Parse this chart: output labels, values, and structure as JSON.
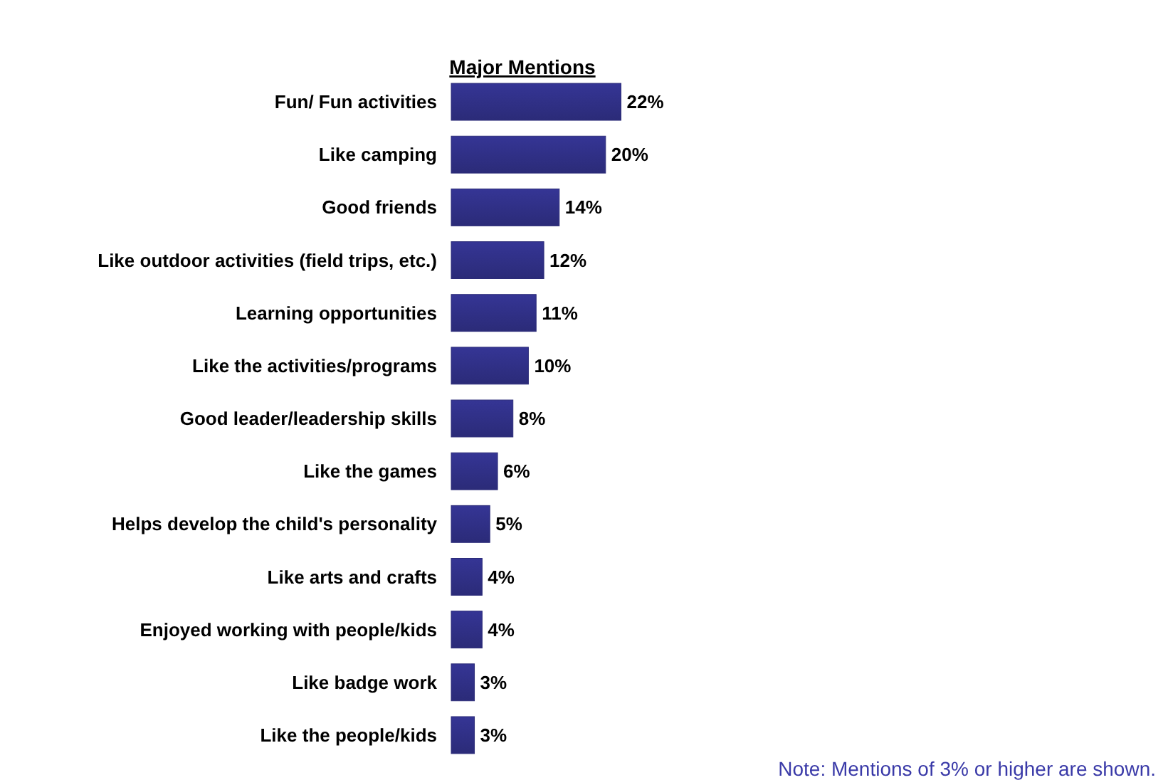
{
  "chart_data": {
    "type": "bar",
    "orientation": "horizontal",
    "title": "Major Mentions",
    "categories": [
      "Fun/ Fun activities",
      "Like camping",
      "Good friends",
      "Like outdoor activities (field trips, etc.)",
      "Learning opportunities",
      "Like the activities/programs",
      "Good leader/leadership skills",
      "Like the games",
      "Helps develop the child's personality",
      "Like arts and crafts",
      "Enjoyed working with people/kids",
      "Like badge work",
      "Like the people/kids"
    ],
    "values": [
      22,
      20,
      14,
      12,
      11,
      10,
      8,
      6,
      5,
      4,
      4,
      3,
      3
    ],
    "value_labels": [
      "22%",
      "20%",
      "14%",
      "12%",
      "11%",
      "10%",
      "8%",
      "6%",
      "5%",
      "4%",
      "4%",
      "3%",
      "3%"
    ],
    "color": "#2b2b78",
    "annotations": [
      "Note: Mentions of 3% or higher are shown."
    ]
  }
}
